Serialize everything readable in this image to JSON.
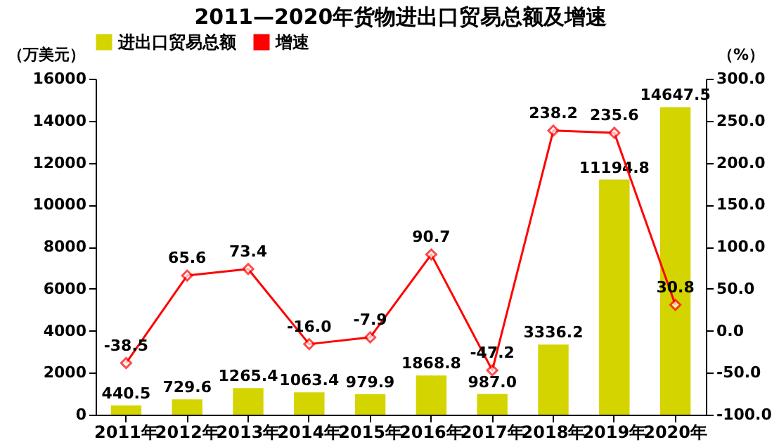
{
  "chart_data": {
    "type": "bar",
    "title": "2011—2020年货物进出口贸易总额及增速",
    "ylabel": "（万美元）",
    "y2label": "（%）",
    "categories": [
      "2011年",
      "2012年",
      "2013年",
      "2014年",
      "2015年",
      "2016年",
      "2017年",
      "2018年",
      "2019年",
      "2020年"
    ],
    "series": [
      {
        "name": "进出口贸易总额",
        "type": "bar",
        "color": "#d4d400",
        "values": [
          440.5,
          729.6,
          1265.4,
          1063.4,
          979.9,
          1868.8,
          987.0,
          3336.2,
          11194.8,
          14647.5
        ],
        "value_labels": [
          "440.5",
          "729.6",
          "1265.4",
          "1063.4",
          "979.9",
          "1868.8",
          "987.0",
          "3336.2",
          "11194.8",
          "14647.5"
        ]
      },
      {
        "name": "增速",
        "type": "line",
        "axis": "y2",
        "color": "#ff0000",
        "marker": "diamond",
        "values": [
          -38.5,
          65.6,
          73.4,
          -16.0,
          -7.9,
          90.7,
          -47.2,
          238.2,
          235.6,
          30.8
        ],
        "value_labels": [
          "-38.5",
          "65.6",
          "73.4",
          "-16.0",
          "-7.9",
          "90.7",
          "-47.2",
          "238.2",
          "235.6",
          "30.8"
        ]
      }
    ],
    "ylim": [
      0,
      16000
    ],
    "yticks": [
      0,
      2000,
      4000,
      6000,
      8000,
      10000,
      12000,
      14000,
      16000
    ],
    "y2lim": [
      -100,
      300
    ],
    "y2ticks": [
      {
        "value": -100,
        "label": "-100.0"
      },
      {
        "value": -50,
        "label": "-50.0"
      },
      {
        "value": 0,
        "label": "0.0"
      },
      {
        "value": 50,
        "label": "50.0"
      },
      {
        "value": 100,
        "label": "100.0"
      },
      {
        "value": 150,
        "label": "150.0"
      },
      {
        "value": 200,
        "label": "200.0"
      },
      {
        "value": 250,
        "label": "250.0"
      },
      {
        "value": 300,
        "label": "300.0"
      }
    ],
    "legend": "top",
    "grid": false
  }
}
